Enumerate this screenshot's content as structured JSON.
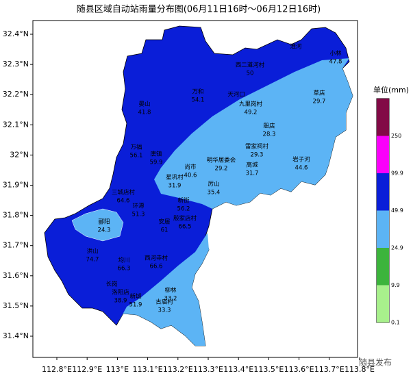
{
  "title": "随县区域自动站雨量分布图(06月11日16时～06月12日16时)",
  "axes": {
    "yticks": [
      "32.4°N",
      "32.3°N",
      "32.2°N",
      "32.1°N",
      "32°N",
      "31.9°N",
      "31.8°N",
      "31.7°N",
      "31.6°N",
      "31.5°N",
      "31.4°N"
    ],
    "xticks": [
      "112.8°E",
      "112.9°E",
      "113°E",
      "113.1°E",
      "113.2°E",
      "113.3°E",
      "113.4°E",
      "113.5°E",
      "113.6°E",
      "113.7°E",
      "113.8°E"
    ]
  },
  "legend": {
    "title": "单位(mm)",
    "levels": [
      "0.1",
      "9.9",
      "24.9",
      "49.9",
      "99.9",
      "250"
    ],
    "colors": [
      "#a8f08c",
      "#3cb43c",
      "#5cb4f5",
      "#0a1ed8",
      "#fa00fa",
      "#820a46"
    ]
  },
  "stations": [
    {
      "name": "淮河"
    },
    {
      "name": "小林",
      "value": "47.8"
    },
    {
      "name": "西二道河村",
      "value": "50"
    },
    {
      "name": "草店",
      "value": "29.7"
    },
    {
      "name": "万和",
      "value": "54.1"
    },
    {
      "name": "天河口"
    },
    {
      "name": "九里岗村",
      "value": "49.2"
    },
    {
      "name": "晏山",
      "value": "41.8"
    },
    {
      "name": "殷店",
      "value": "28.3"
    },
    {
      "name": "万福",
      "value": "56.1"
    },
    {
      "name": "唐镇",
      "value": "59.9"
    },
    {
      "name": "雷家祠村",
      "value": "29.3"
    },
    {
      "name": "岩子河",
      "value": "44.6"
    },
    {
      "name": "明华居委会",
      "value": "29.2"
    },
    {
      "name": "尚市",
      "value": "40.6"
    },
    {
      "name": "高城",
      "value": "31.7"
    },
    {
      "name": "星巩村",
      "value": "31.9"
    },
    {
      "name": "厉山",
      "value": "35.4"
    },
    {
      "name": "三城店村",
      "value": "64.6"
    },
    {
      "name": "新街",
      "value": "56.2"
    },
    {
      "name": "环潭",
      "value": "51.3"
    },
    {
      "name": "郦阳",
      "value": "24.3"
    },
    {
      "name": "安居",
      "value": "61"
    },
    {
      "name": "殷家店村",
      "value": "66.5"
    },
    {
      "name": "洪山",
      "value": "74.7"
    },
    {
      "name": "均川",
      "value": "66.3"
    },
    {
      "name": "西河寺村",
      "value": "66.6"
    },
    {
      "name": "长岗"
    },
    {
      "name": "洛阳店",
      "value": "38.9"
    },
    {
      "name": "新城",
      "value": "51.9"
    },
    {
      "name": "柳林",
      "value": "33.2"
    },
    {
      "name": "古庙村",
      "value": "33.3"
    }
  ],
  "watermark": "随县发布"
}
